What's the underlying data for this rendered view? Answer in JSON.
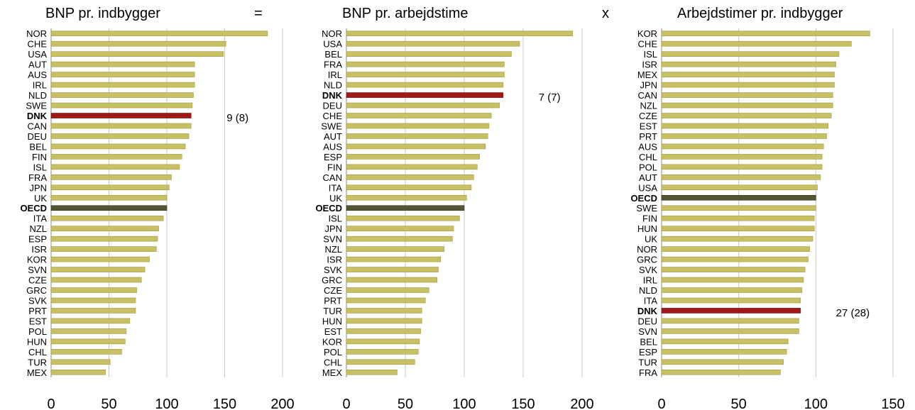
{
  "operators": [
    "=",
    "x"
  ],
  "colors": {
    "bar": "#c8c064",
    "bar_edge": "#a09a40",
    "highlight": "#a01818",
    "oecd": "#555533",
    "grid": "#c8c8c8",
    "axis": "#888888"
  },
  "chart_data": [
    {
      "type": "bar",
      "orientation": "horizontal",
      "title": "BNP pr. indbygger",
      "categories": [
        "NOR",
        "CHE",
        "USA",
        "AUT",
        "AUS",
        "IRL",
        "NLD",
        "SWE",
        "DNK",
        "CAN",
        "DEU",
        "BEL",
        "FIN",
        "ISL",
        "FRA",
        "JPN",
        "UK",
        "OECD",
        "ITA",
        "NZL",
        "ESP",
        "ISR",
        "KOR",
        "SVN",
        "CZE",
        "GRC",
        "SVK",
        "PRT",
        "EST",
        "POL",
        "HUN",
        "CHL",
        "TUR",
        "MEX"
      ],
      "values": [
        187,
        151,
        149,
        124,
        124,
        124,
        123,
        122,
        121,
        121,
        119,
        116,
        113,
        111,
        104,
        102,
        100,
        100,
        97,
        93,
        92,
        91,
        85,
        81,
        78,
        74,
        73,
        73,
        68,
        65,
        64,
        61,
        51,
        47
      ],
      "xlim": [
        0,
        200
      ],
      "xticks": [
        0,
        50,
        100,
        150,
        200
      ],
      "highlight": "DNK",
      "bold_labels": [
        "DNK",
        "OECD"
      ],
      "annotation": "9 (8)",
      "grid": true
    },
    {
      "type": "bar",
      "orientation": "horizontal",
      "title": "BNP pr. arbejdstime",
      "categories": [
        "NOR",
        "USA",
        "BEL",
        "FRA",
        "IRL",
        "NLD",
        "DNK",
        "DEU",
        "CHE",
        "SWE",
        "AUT",
        "AUS",
        "ESP",
        "FIN",
        "CAN",
        "ITA",
        "UK",
        "OECD",
        "ISL",
        "JPN",
        "SVN",
        "NZL",
        "ISR",
        "SVK",
        "GRC",
        "CZE",
        "PRT",
        "TUR",
        "HUN",
        "EST",
        "KOR",
        "POL",
        "CHL",
        "MEX"
      ],
      "values": [
        192,
        147,
        140,
        134,
        134,
        133,
        133,
        130,
        123,
        121,
        120,
        118,
        113,
        111,
        108,
        106,
        102,
        100,
        96,
        91,
        90,
        83,
        80,
        78,
        77,
        70,
        67,
        64,
        64,
        63,
        62,
        61,
        58,
        43
      ],
      "xlim": [
        0,
        200
      ],
      "xticks": [
        0,
        50,
        100,
        150,
        200
      ],
      "highlight": "DNK",
      "bold_labels": [
        "DNK",
        "OECD"
      ],
      "annotation": "7 (7)",
      "grid": true
    },
    {
      "type": "bar",
      "orientation": "horizontal",
      "title": "Arbejdstimer pr. indbygger",
      "categories": [
        "KOR",
        "CHE",
        "ISL",
        "ISR",
        "MEX",
        "JPN",
        "CAN",
        "NZL",
        "CZE",
        "EST",
        "PRT",
        "AUS",
        "CHL",
        "POL",
        "AUT",
        "USA",
        "OECD",
        "SWE",
        "FIN",
        "HUN",
        "UK",
        "NOR",
        "GRC",
        "SVK",
        "IRL",
        "NLD",
        "ITA",
        "DNK",
        "DEU",
        "SVN",
        "BEL",
        "ESP",
        "TUR",
        "FRA"
      ],
      "values": [
        135,
        123,
        115,
        113,
        112,
        112,
        111,
        111,
        110,
        108,
        107,
        105,
        104,
        104,
        103,
        101,
        100,
        100,
        99,
        99,
        98,
        96,
        95,
        93,
        92,
        91,
        90,
        90,
        89,
        89,
        82,
        81,
        79,
        77
      ],
      "xlim": [
        0,
        150
      ],
      "xticks": [
        0,
        50,
        100,
        150
      ],
      "highlight": "DNK",
      "bold_labels": [
        "DNK",
        "OECD"
      ],
      "annotation": "27 (28)",
      "grid": true
    }
  ]
}
